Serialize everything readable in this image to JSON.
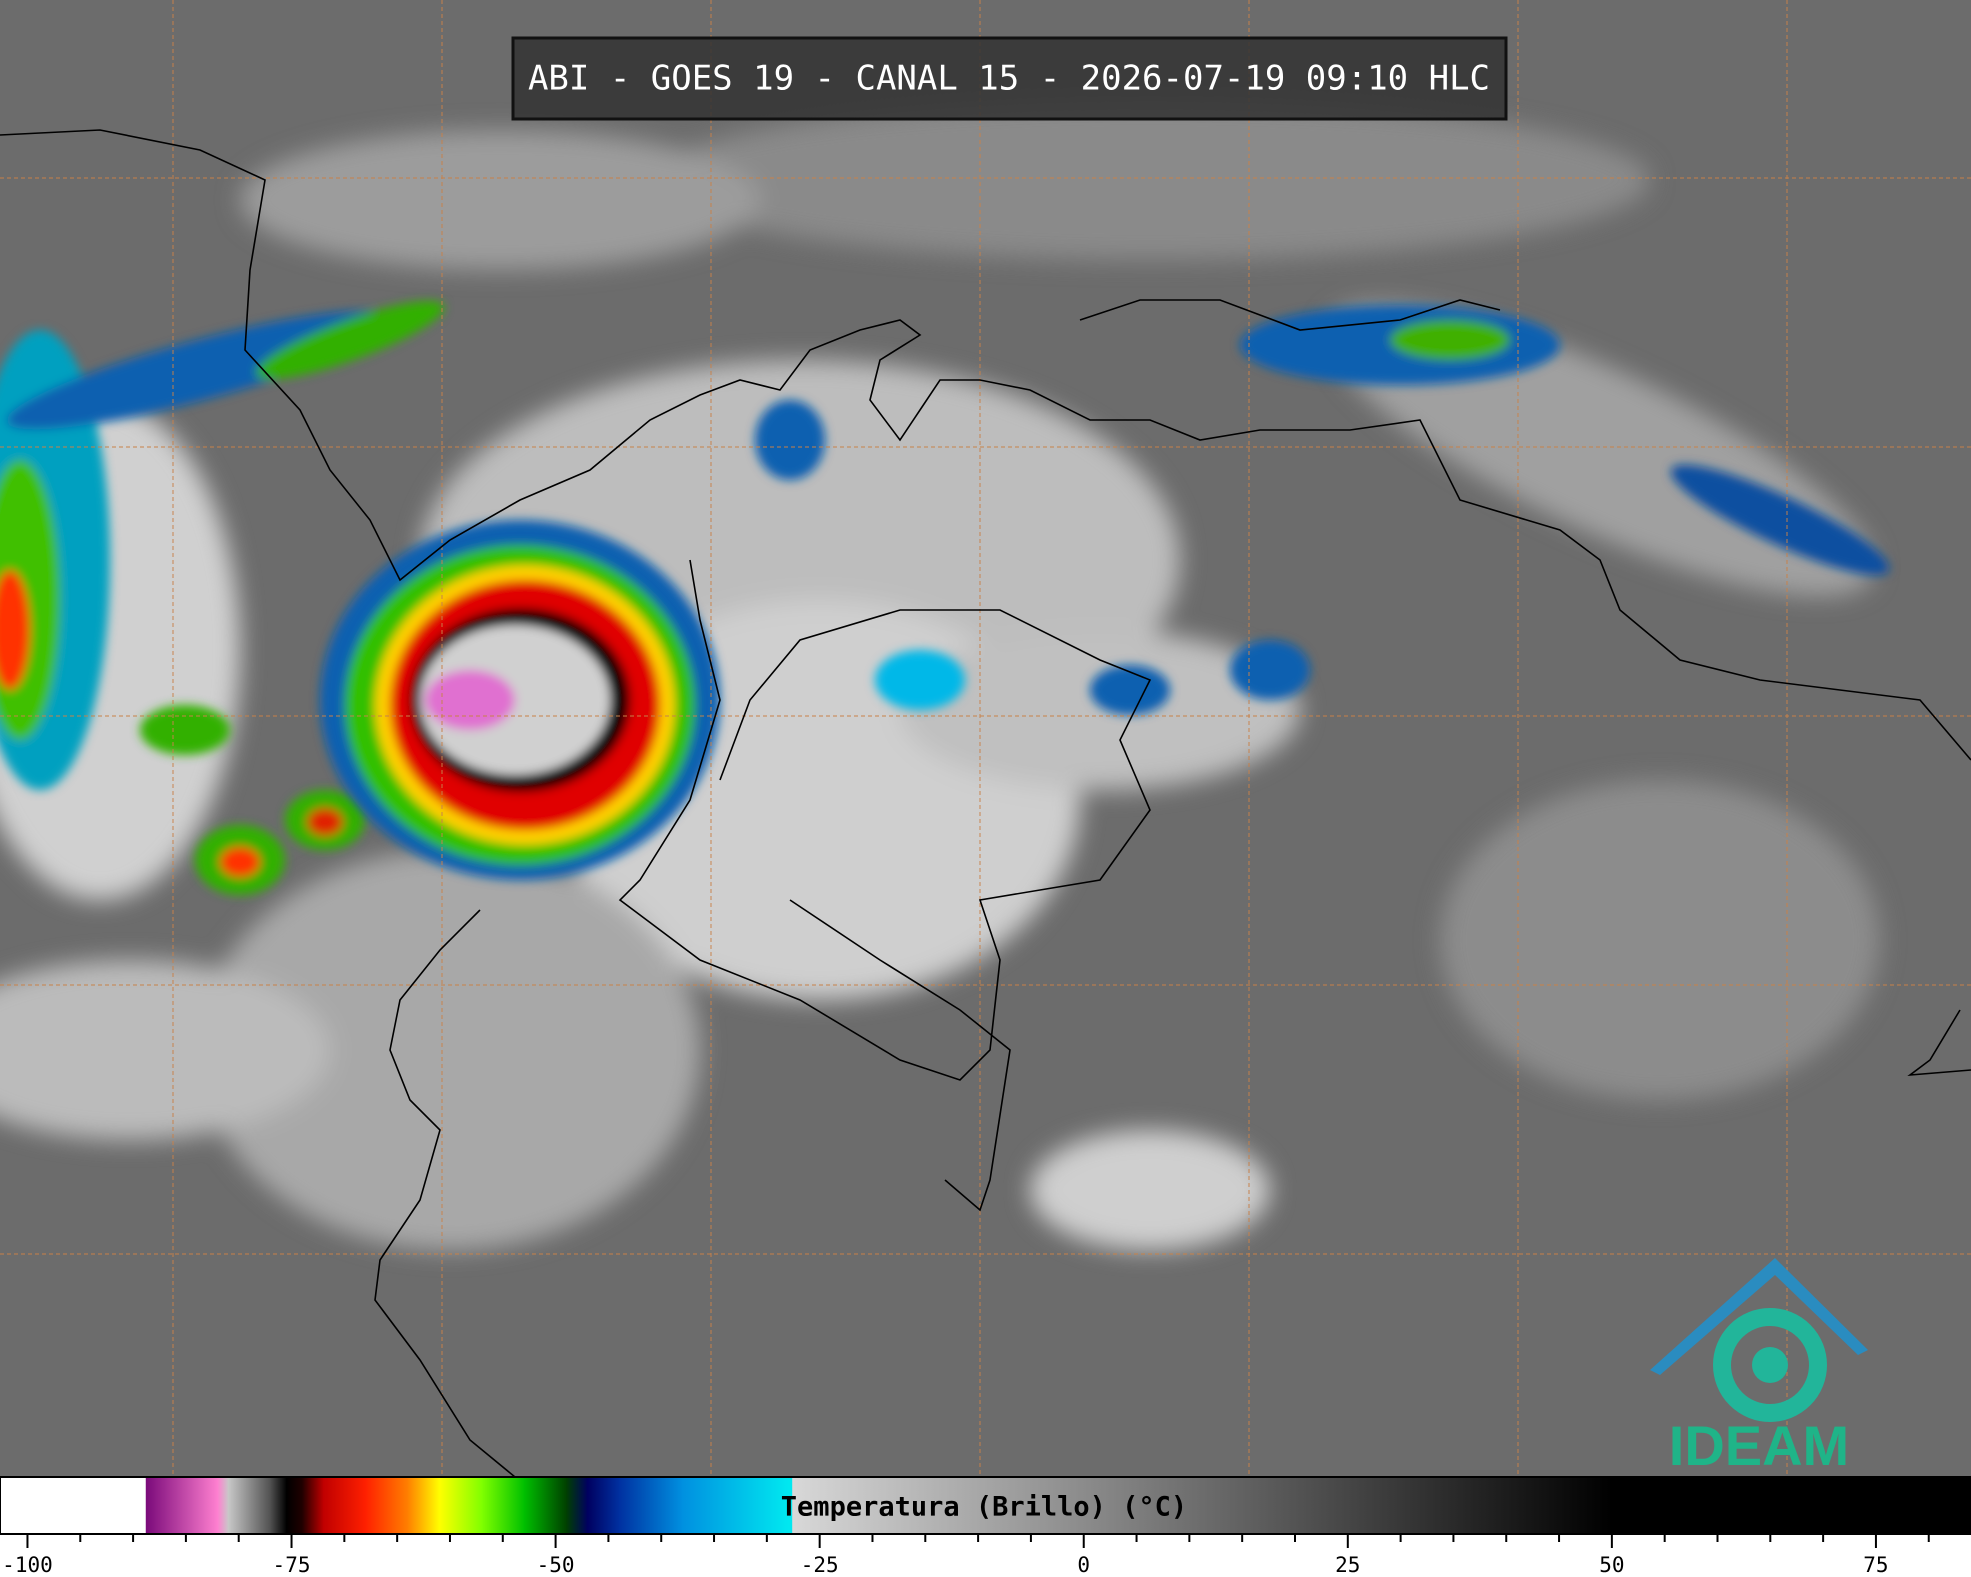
{
  "title": "ABI - GOES 19 - CANAL 15 - 2026-07-19 09:10 HLC",
  "logo": "IDEAM",
  "chart_data": {
    "type": "colorbar",
    "xlabel": "Temperatura (Brillo) (°C)",
    "xlim": [
      -102.6,
      84
    ],
    "xticks": [
      -100,
      -75,
      -50,
      -25,
      0,
      25,
      50,
      75
    ],
    "xminorticks": [
      -95,
      -90,
      -85,
      -80,
      -70,
      -65,
      -60,
      -55,
      -45,
      -40,
      -35,
      -30,
      -20,
      -15,
      -10,
      -5,
      5,
      10,
      15,
      20,
      30,
      35,
      40,
      45,
      55,
      60,
      65,
      70,
      80
    ],
    "colorscale": [
      {
        "value": -102.6,
        "color": "#ffffff"
      },
      {
        "value": -88.8,
        "color": "#ffffff"
      },
      {
        "value": -88.8,
        "color": "#7a0a7a"
      },
      {
        "value": -82,
        "color": "#ff80d0"
      },
      {
        "value": -81,
        "color": "#c8c8c8"
      },
      {
        "value": -77,
        "color": "#505050"
      },
      {
        "value": -75.5,
        "color": "#000000"
      },
      {
        "value": -74,
        "color": "#200000"
      },
      {
        "value": -72,
        "color": "#c00000"
      },
      {
        "value": -68,
        "color": "#ff2000"
      },
      {
        "value": -64,
        "color": "#ff8000"
      },
      {
        "value": -61,
        "color": "#ffff00"
      },
      {
        "value": -57,
        "color": "#80ff00"
      },
      {
        "value": -53,
        "color": "#00c000"
      },
      {
        "value": -49,
        "color": "#004000"
      },
      {
        "value": -47,
        "color": "#000060"
      },
      {
        "value": -44,
        "color": "#0030a0"
      },
      {
        "value": -38,
        "color": "#0090e0"
      },
      {
        "value": -28,
        "color": "#00e8f0"
      },
      {
        "value": -27.6,
        "color": "#00e8f0"
      },
      {
        "value": -27.6,
        "color": "#d8d8d8"
      },
      {
        "value": 50,
        "color": "#000000"
      },
      {
        "value": 84,
        "color": "#000000"
      }
    ]
  }
}
